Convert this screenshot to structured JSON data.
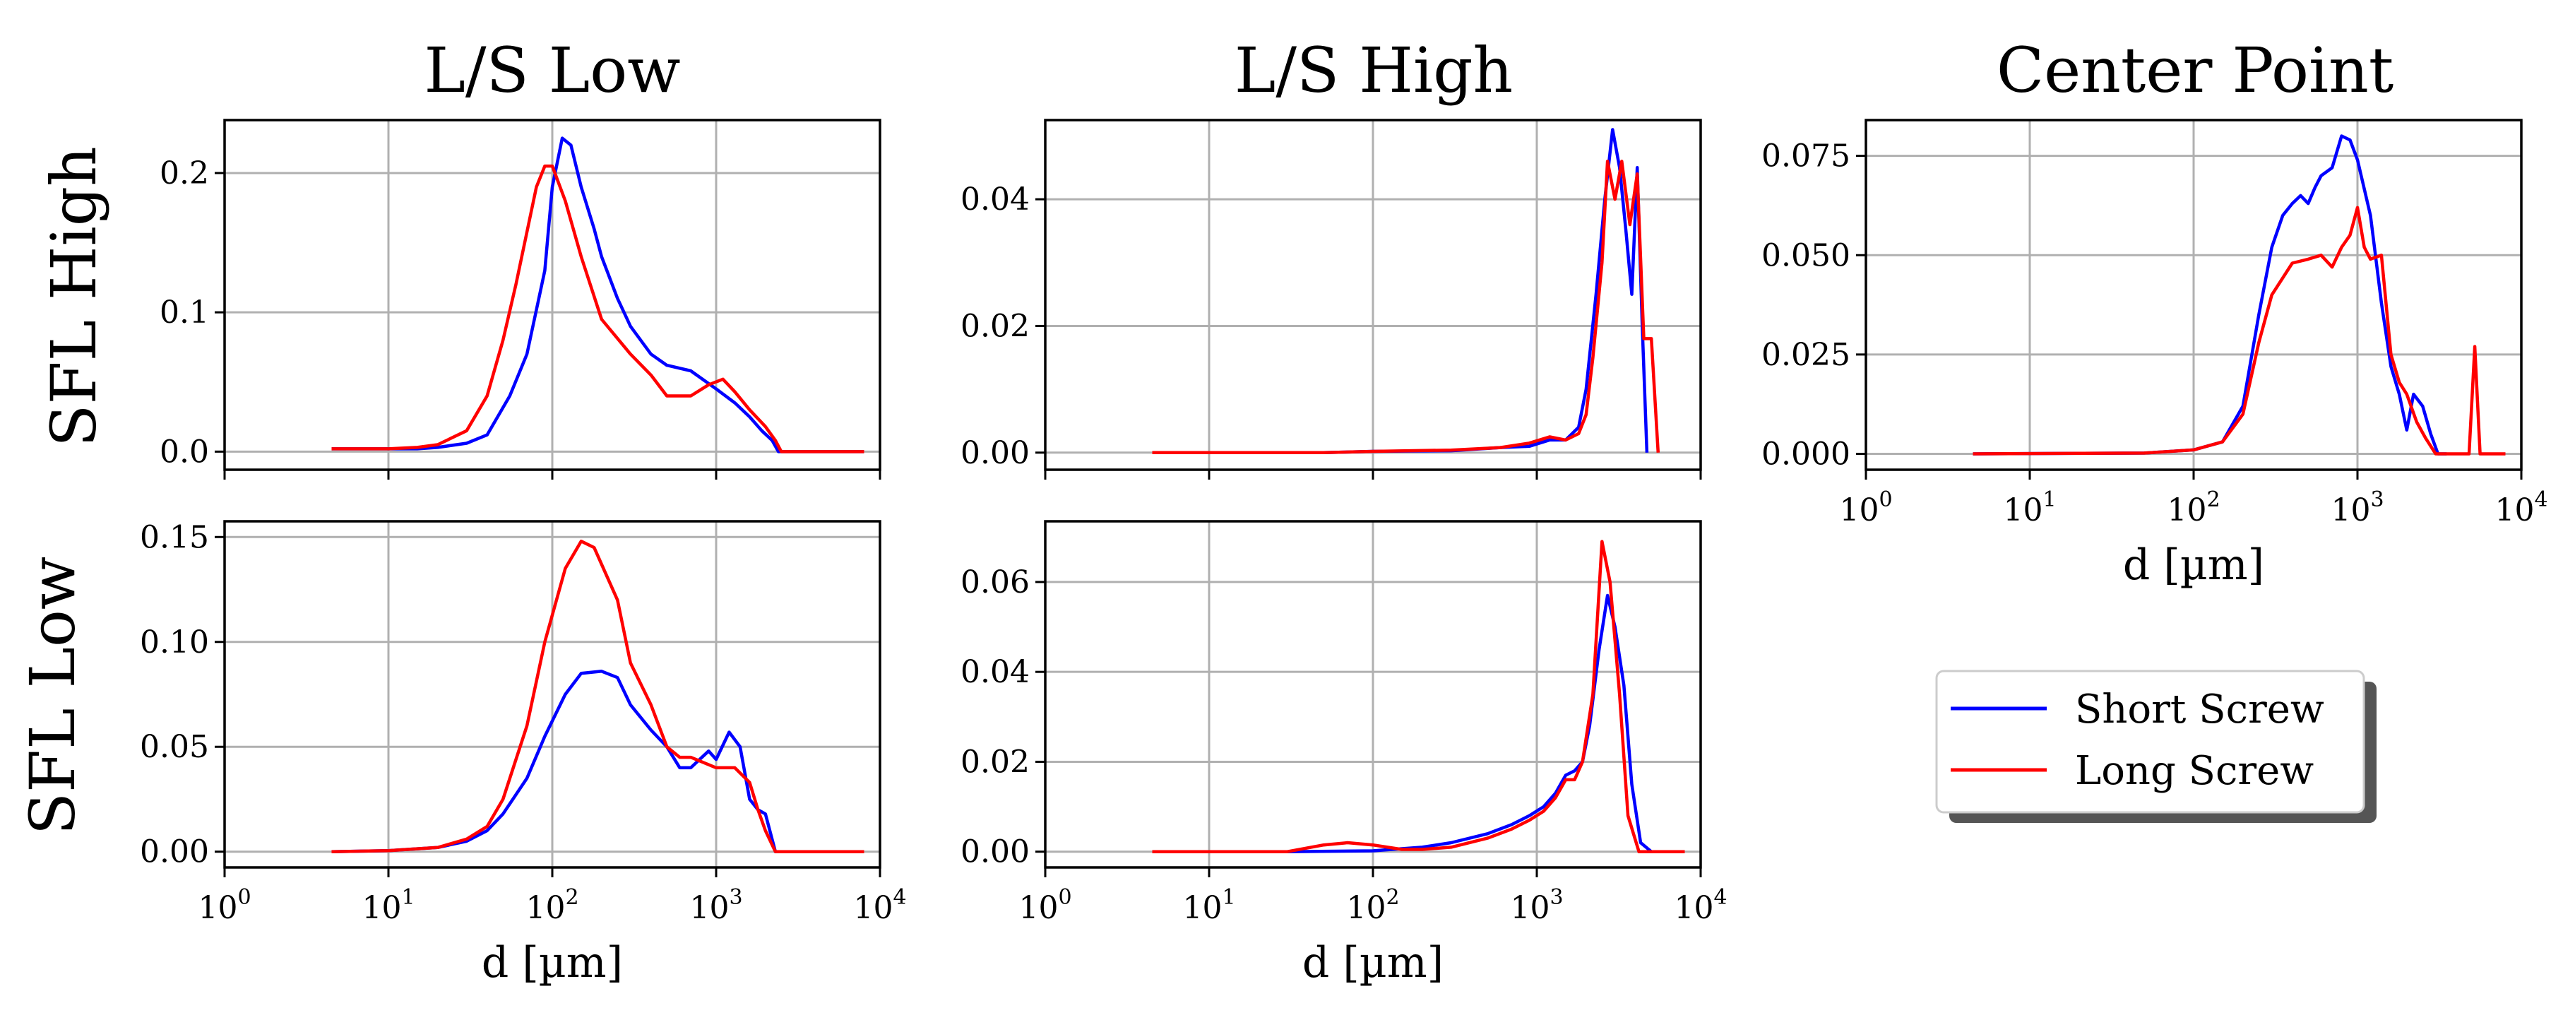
{
  "colors": {
    "short_screw": "#0000ff",
    "long_screw": "#ff0000"
  },
  "column_titles": [
    "L/S Low",
    "L/S High",
    "Center Point"
  ],
  "row_titles": [
    "SFL High",
    "SFL Low"
  ],
  "legend": {
    "placement": "right-bottom",
    "entries": [
      "Short Screw",
      "Long Screw"
    ]
  },
  "chart_data": [
    {
      "type": "line",
      "id": "ls-low-sfl-high",
      "title": "",
      "xscale": "log",
      "xlim": [
        1,
        10000
      ],
      "ylim": [
        -0.013,
        0.238
      ],
      "yticks": [
        0.0,
        0.1,
        0.2
      ],
      "ytick_labels": [
        "0.0",
        "0.1",
        "0.2"
      ],
      "xticks": [
        1,
        10,
        100,
        1000,
        10000
      ],
      "show_xtick_labels": false,
      "xlabel": "",
      "series": [
        {
          "name": "Short Screw",
          "x": [
            4.5,
            10,
            15,
            20,
            30,
            40,
            55,
            70,
            90,
            100,
            115,
            130,
            150,
            180,
            200,
            250,
            300,
            400,
            500,
            700,
            1000,
            1300,
            1600,
            1900,
            2200,
            2400,
            3000,
            5000,
            8000
          ],
          "y": [
            0.002,
            0.002,
            0.002,
            0.003,
            0.006,
            0.012,
            0.04,
            0.07,
            0.13,
            0.19,
            0.225,
            0.22,
            0.19,
            0.16,
            0.14,
            0.11,
            0.09,
            0.07,
            0.062,
            0.058,
            0.045,
            0.035,
            0.025,
            0.015,
            0.008,
            0.0,
            0.0,
            0.0,
            0.0
          ]
        },
        {
          "name": "Long Screw",
          "x": [
            4.5,
            10,
            15,
            20,
            30,
            40,
            50,
            60,
            80,
            90,
            100,
            120,
            150,
            200,
            300,
            400,
            500,
            700,
            900,
            1100,
            1300,
            1600,
            2000,
            2300,
            2500,
            3000,
            5000,
            8000
          ],
          "y": [
            0.002,
            0.002,
            0.003,
            0.005,
            0.015,
            0.04,
            0.08,
            0.12,
            0.19,
            0.205,
            0.205,
            0.18,
            0.14,
            0.095,
            0.07,
            0.055,
            0.04,
            0.04,
            0.048,
            0.052,
            0.043,
            0.03,
            0.018,
            0.008,
            0.0,
            0.0,
            0.0,
            0.0
          ]
        }
      ]
    },
    {
      "type": "line",
      "id": "ls-high-sfl-high",
      "title": "",
      "xscale": "log",
      "xlim": [
        1,
        10000
      ],
      "ylim": [
        -0.0027,
        0.0525
      ],
      "yticks": [
        0.0,
        0.02,
        0.04
      ],
      "ytick_labels": [
        "0.00",
        "0.02",
        "0.04"
      ],
      "xticks": [
        1,
        10,
        100,
        1000,
        10000
      ],
      "show_xtick_labels": false,
      "xlabel": "",
      "series": [
        {
          "name": "Short Screw",
          "x": [
            4.5,
            50,
            100,
            300,
            600,
            900,
            1200,
            1500,
            1800,
            2000,
            2300,
            2600,
            2900,
            3200,
            3500,
            3800,
            4100,
            4400,
            4700
          ],
          "y": [
            0.0,
            0.0,
            0.0002,
            0.0003,
            0.0008,
            0.001,
            0.002,
            0.002,
            0.004,
            0.01,
            0.025,
            0.04,
            0.051,
            0.045,
            0.035,
            0.025,
            0.045,
            0.02,
            0.0
          ]
        },
        {
          "name": "Long Screw",
          "x": [
            4.5,
            50,
            100,
            300,
            600,
            900,
            1200,
            1500,
            1800,
            2000,
            2200,
            2500,
            2700,
            3000,
            3300,
            3700,
            4100,
            4500,
            5000,
            5500
          ],
          "y": [
            0.0,
            0.0,
            0.0002,
            0.0004,
            0.0008,
            0.0015,
            0.0025,
            0.002,
            0.003,
            0.006,
            0.015,
            0.03,
            0.046,
            0.04,
            0.046,
            0.036,
            0.044,
            0.018,
            0.018,
            0.0
          ]
        }
      ]
    },
    {
      "type": "line",
      "id": "center-point",
      "title": "",
      "xscale": "log",
      "xlim": [
        1,
        10000
      ],
      "ylim": [
        -0.004,
        0.084
      ],
      "yticks": [
        0.0,
        0.025,
        0.05,
        0.075
      ],
      "ytick_labels": [
        "0.000",
        "0.025",
        "0.050",
        "0.075"
      ],
      "xticks": [
        1,
        10,
        100,
        1000,
        10000
      ],
      "show_xtick_labels": true,
      "xlabel": "d [µm]",
      "series": [
        {
          "name": "Short Screw",
          "x": [
            4.5,
            50,
            100,
            150,
            200,
            250,
            300,
            350,
            400,
            450,
            500,
            550,
            600,
            700,
            800,
            900,
            1000,
            1200,
            1400,
            1600,
            1800,
            2000,
            2200,
            2500,
            2800,
            3100,
            3500
          ],
          "y": [
            0.0,
            0.0002,
            0.001,
            0.003,
            0.012,
            0.035,
            0.052,
            0.06,
            0.063,
            0.065,
            0.063,
            0.067,
            0.07,
            0.072,
            0.08,
            0.079,
            0.074,
            0.06,
            0.038,
            0.022,
            0.015,
            0.006,
            0.015,
            0.012,
            0.005,
            0.0,
            0.0
          ]
        },
        {
          "name": "Long Screw",
          "x": [
            4.5,
            50,
            100,
            150,
            200,
            250,
            300,
            400,
            500,
            600,
            700,
            800,
            900,
            1000,
            1100,
            1200,
            1400,
            1600,
            1800,
            2000,
            2300,
            2600,
            3000,
            3500,
            4000,
            4800,
            5200,
            5600,
            8000
          ],
          "y": [
            0.0,
            0.0002,
            0.001,
            0.003,
            0.01,
            0.028,
            0.04,
            0.048,
            0.049,
            0.05,
            0.047,
            0.052,
            0.055,
            0.062,
            0.052,
            0.049,
            0.05,
            0.025,
            0.018,
            0.015,
            0.008,
            0.004,
            0.0,
            0.0,
            0.0,
            0.0,
            0.027,
            0.0,
            0.0
          ]
        }
      ]
    },
    {
      "type": "line",
      "id": "ls-low-sfl-low",
      "title": "",
      "xscale": "log",
      "xlim": [
        1,
        10000
      ],
      "ylim": [
        -0.0075,
        0.1575
      ],
      "yticks": [
        0.0,
        0.05,
        0.1,
        0.15
      ],
      "ytick_labels": [
        "0.00",
        "0.05",
        "0.10",
        "0.15"
      ],
      "xticks": [
        1,
        10,
        100,
        1000,
        10000
      ],
      "show_xtick_labels": true,
      "xlabel": "d [µm]",
      "series": [
        {
          "name": "Short Screw",
          "x": [
            4.5,
            10,
            20,
            30,
            40,
            50,
            70,
            90,
            120,
            150,
            200,
            250,
            300,
            400,
            500,
            600,
            700,
            900,
            1000,
            1200,
            1400,
            1600,
            1800,
            2000,
            2300,
            3000,
            5000,
            8000
          ],
          "y": [
            0.0,
            0.0005,
            0.002,
            0.005,
            0.01,
            0.018,
            0.035,
            0.055,
            0.075,
            0.085,
            0.086,
            0.083,
            0.07,
            0.058,
            0.05,
            0.04,
            0.04,
            0.048,
            0.044,
            0.057,
            0.05,
            0.025,
            0.02,
            0.018,
            0.0,
            0.0,
            0.0,
            0.0
          ]
        },
        {
          "name": "Long Screw",
          "x": [
            4.5,
            10,
            20,
            30,
            40,
            50,
            70,
            90,
            120,
            150,
            180,
            250,
            300,
            400,
            500,
            600,
            700,
            1000,
            1300,
            1600,
            1800,
            2000,
            2300,
            3000,
            5000,
            8000
          ],
          "y": [
            0.0,
            0.0005,
            0.002,
            0.006,
            0.012,
            0.025,
            0.06,
            0.1,
            0.135,
            0.148,
            0.145,
            0.12,
            0.09,
            0.07,
            0.05,
            0.045,
            0.045,
            0.04,
            0.04,
            0.033,
            0.02,
            0.01,
            0.0,
            0.0,
            0.0,
            0.0
          ]
        }
      ]
    },
    {
      "type": "line",
      "id": "ls-high-sfl-low",
      "title": "",
      "xscale": "log",
      "xlim": [
        1,
        10000
      ],
      "ylim": [
        -0.0035,
        0.0735
      ],
      "yticks": [
        0.0,
        0.02,
        0.04,
        0.06
      ],
      "ytick_labels": [
        "0.00",
        "0.02",
        "0.04",
        "0.06"
      ],
      "xticks": [
        1,
        10,
        100,
        1000,
        10000
      ],
      "show_xtick_labels": true,
      "xlabel": "d [µm]",
      "series": [
        {
          "name": "Short Screw",
          "x": [
            4.5,
            30,
            100,
            200,
            300,
            500,
            700,
            900,
            1100,
            1300,
            1500,
            1700,
            1900,
            2100,
            2400,
            2700,
            3000,
            3400,
            3800,
            4300,
            5000,
            8000
          ],
          "y": [
            0.0,
            0.0,
            0.0002,
            0.001,
            0.002,
            0.004,
            0.006,
            0.008,
            0.01,
            0.013,
            0.017,
            0.018,
            0.02,
            0.028,
            0.045,
            0.057,
            0.05,
            0.037,
            0.015,
            0.002,
            0.0,
            0.0
          ]
        },
        {
          "name": "Long Screw",
          "x": [
            4.5,
            30,
            50,
            70,
            100,
            150,
            200,
            300,
            500,
            700,
            900,
            1100,
            1300,
            1500,
            1700,
            1900,
            2200,
            2500,
            2800,
            3200,
            3600,
            4200,
            5000,
            8000
          ],
          "y": [
            0.0,
            0.0,
            0.0015,
            0.002,
            0.0015,
            0.0005,
            0.0005,
            0.001,
            0.003,
            0.005,
            0.007,
            0.009,
            0.012,
            0.016,
            0.016,
            0.02,
            0.035,
            0.069,
            0.06,
            0.035,
            0.008,
            0.0,
            0.0,
            0.0
          ]
        }
      ]
    }
  ]
}
